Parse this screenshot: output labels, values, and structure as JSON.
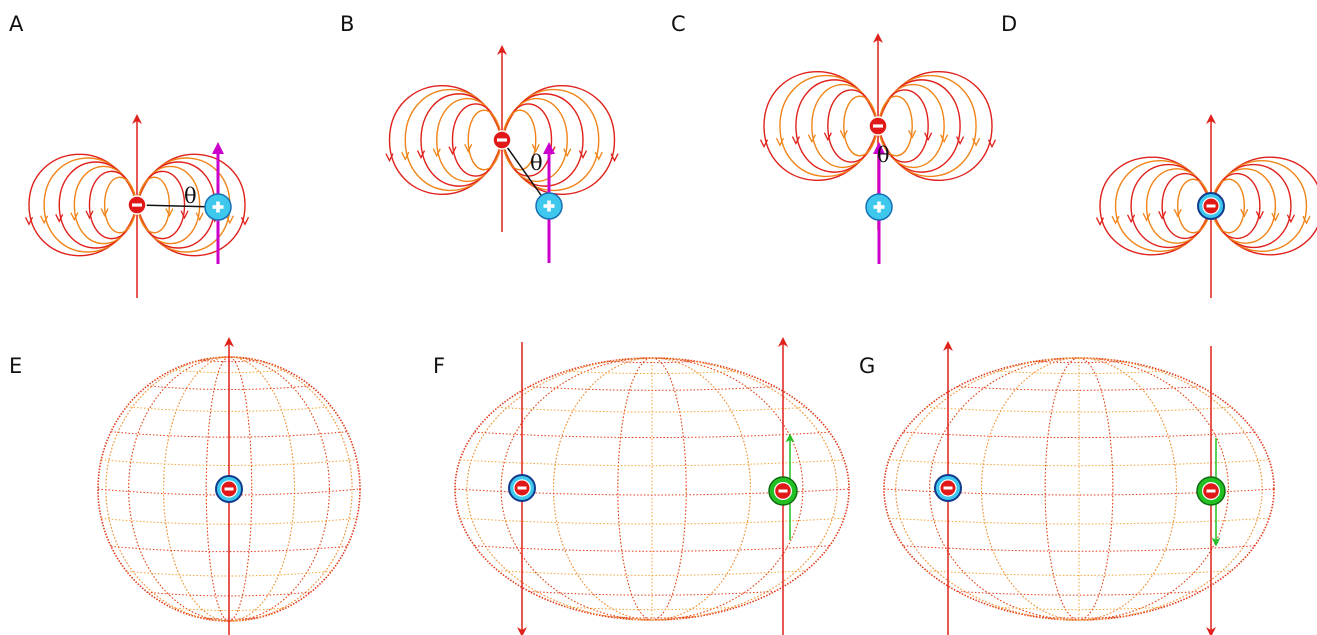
{
  "panels": {
    "A": {
      "label": "A",
      "angle_symbol": "θ"
    },
    "B": {
      "label": "B",
      "angle_symbol": "θ"
    },
    "C": {
      "label": "C",
      "angle_symbol": "θ"
    },
    "D": {
      "label": "D"
    },
    "E": {
      "label": "E"
    },
    "F": {
      "label": "F"
    },
    "G": {
      "label": "G"
    }
  },
  "colors": {
    "field_red": "#e0201a",
    "field_orange": "#f08418",
    "axis_arrow": "#e0201a",
    "proton_spin": "#cc00cc",
    "proton_fill": "#3ec8ee",
    "electron_fill": "#e01818",
    "green_particle": "#22c022",
    "green_arrow": "#22c022",
    "mesh_red": "#e23a1a",
    "mesh_orange": "#f3a437"
  }
}
